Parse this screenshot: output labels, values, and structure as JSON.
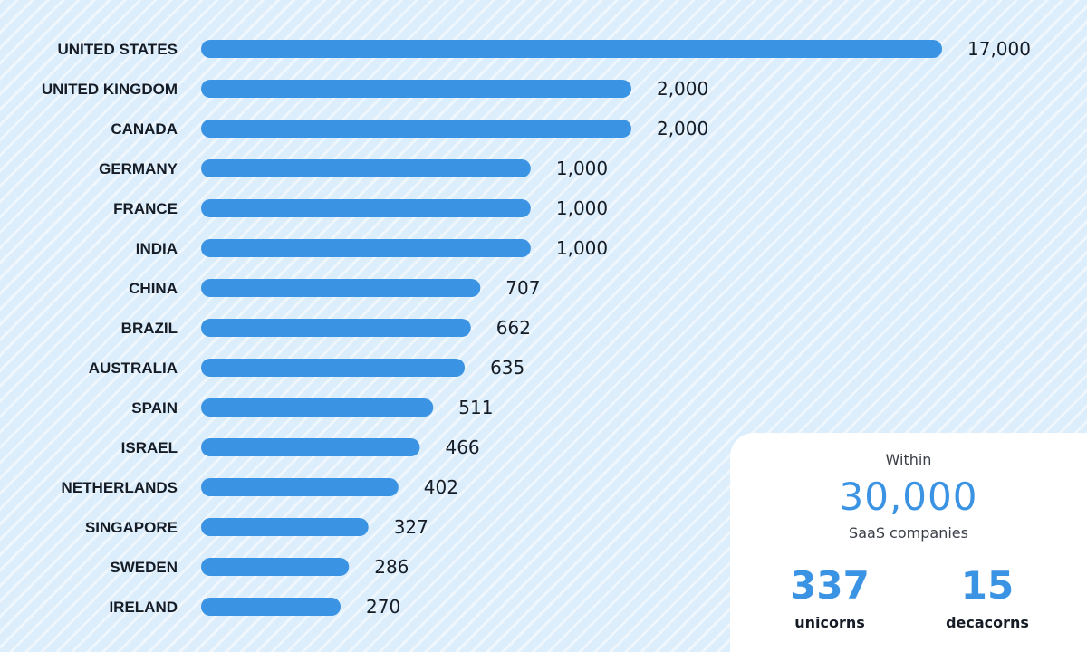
{
  "chart_data": {
    "type": "bar",
    "orientation": "horizontal",
    "categories": [
      "UNITED STATES",
      "UNITED KINGDOM",
      "CANADA",
      "GERMANY",
      "FRANCE",
      "INDIA",
      "CHINA",
      "BRAZIL",
      "AUSTRALIA",
      "SPAIN",
      "ISRAEL",
      "NETHERLANDS",
      "SINGAPORE",
      "SWEDEN",
      "IRELAND"
    ],
    "values": [
      17000,
      2000,
      2000,
      1000,
      1000,
      1000,
      707,
      662,
      635,
      511,
      466,
      402,
      327,
      286,
      270
    ],
    "value_labels": [
      "17,000",
      "2,000",
      "2,000",
      "1,000",
      "1,000",
      "1,000",
      "707",
      "662",
      "635",
      "511",
      "466",
      "402",
      "327",
      "286",
      "270"
    ],
    "title": "",
    "xlabel": "",
    "ylabel": "",
    "grid": false,
    "bar_color": "#3b93e3"
  },
  "summary": {
    "within_label": "Within",
    "total_value": "30,000",
    "total_label": "SaaS companies",
    "unicorns_value": "337",
    "unicorns_label": "unicorns",
    "decacorns_value": "15",
    "decacorns_label": "decacorns"
  },
  "colors": {
    "accent": "#3b93e3",
    "text": "#151c26",
    "background": "#dcedfb",
    "card": "#ffffff"
  }
}
